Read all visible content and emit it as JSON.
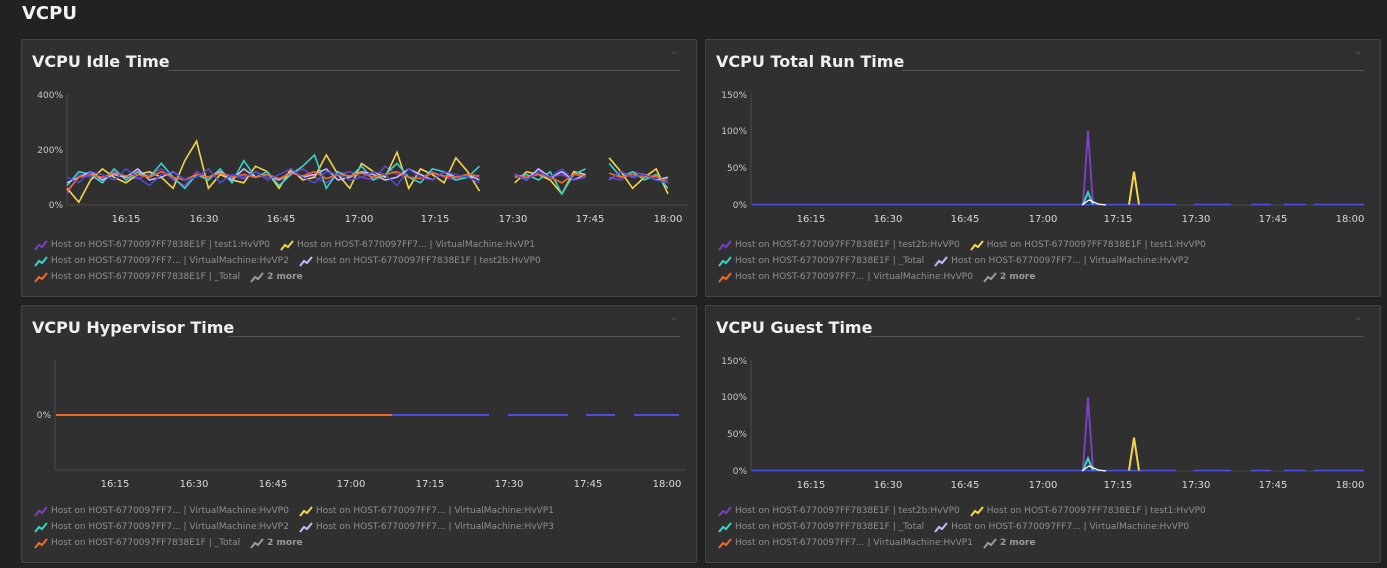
{
  "page": {
    "title": "VCPU"
  },
  "colors": {
    "purple": "#7b3fbf",
    "yellow": "#f5d64a",
    "cyan": "#36d3c9",
    "lavender": "#c9b6ff",
    "orange": "#ef6a2b",
    "blue": "#4b4fe0",
    "white": "#ffffff",
    "gray": "#9a9a9d"
  },
  "panels": [
    {
      "title": "VCPU Idle Time",
      "legend": [
        {
          "label": "Host on HOST-6770097FF7838E1F | test1:HvVP0",
          "color": "#7b3fbf"
        },
        {
          "label": "Host on HOST-6770097FF7... | VirtualMachine:HvVP1",
          "color": "#f5d64a"
        },
        {
          "label": "Host on HOST-6770097FF7... | VirtualMachine:HvVP2",
          "color": "#36d3c9"
        },
        {
          "label": "Host on HOST-6770097FF7838E1F | test2b:HvVP0",
          "color": "#c9b6ff"
        },
        {
          "label": "Host on HOST-6770097FF7838E1F | _Total",
          "color": "#ef6a2b"
        }
      ],
      "more": "2 more"
    },
    {
      "title": "VCPU Total Run Time",
      "legend": [
        {
          "label": "Host on HOST-6770097FF7838E1F | test2b:HvVP0",
          "color": "#7b3fbf"
        },
        {
          "label": "Host on HOST-6770097FF7838E1F | test1:HvVP0",
          "color": "#f5d64a"
        },
        {
          "label": "Host on HOST-6770097FF7838E1F | _Total",
          "color": "#36d3c9"
        },
        {
          "label": "Host on HOST-6770097FF7... | VirtualMachine:HvVP2",
          "color": "#c9b6ff"
        },
        {
          "label": "Host on HOST-6770097FF7... | VirtualMachine:HvVP0",
          "color": "#ef6a2b"
        }
      ],
      "more": "2 more"
    },
    {
      "title": "VCPU Hypervisor Time",
      "legend": [
        {
          "label": "Host on HOST-6770097FF7... | VirtualMachine:HvVP0",
          "color": "#7b3fbf"
        },
        {
          "label": "Host on HOST-6770097FF7... | VirtualMachine:HvVP1",
          "color": "#f5d64a"
        },
        {
          "label": "Host on HOST-6770097FF7... | VirtualMachine:HvVP2",
          "color": "#36d3c9"
        },
        {
          "label": "Host on HOST-6770097FF7... | VirtualMachine:HvVP3",
          "color": "#c9b6ff"
        },
        {
          "label": "Host on HOST-6770097FF7838E1F | _Total",
          "color": "#ef6a2b"
        }
      ],
      "more": "2 more"
    },
    {
      "title": "VCPU Guest Time",
      "legend": [
        {
          "label": "Host on HOST-6770097FF7838E1F | test2b:HvVP0",
          "color": "#7b3fbf"
        },
        {
          "label": "Host on HOST-6770097FF7838E1F | test1:HvVP0",
          "color": "#f5d64a"
        },
        {
          "label": "Host on HOST-6770097FF7838E1F | _Total",
          "color": "#36d3c9"
        },
        {
          "label": "Host on HOST-6770097FF7... | VirtualMachine:HvVP0",
          "color": "#c9b6ff"
        },
        {
          "label": "Host on HOST-6770097FF7... | VirtualMachine:HvVP1",
          "color": "#ef6a2b"
        }
      ],
      "more": "2 more"
    }
  ],
  "chart_data": [
    {
      "type": "line",
      "title": "VCPU Idle Time",
      "yticks": [
        "0%",
        "200%",
        "400%"
      ],
      "ylim": [
        0,
        400
      ],
      "xticks": [
        "16:15",
        "16:30",
        "16:45",
        "17:00",
        "17:15",
        "17:30",
        "17:45",
        "18:00"
      ],
      "series_note": "highly variable series oscillating roughly between 0% and 230%",
      "series": [
        {
          "name": "Host on HOST-6770097FF7838E1F | test1:HvVP0",
          "values": [
            40,
            110,
            100,
            90,
            120,
            100,
            95,
            110,
            130,
            90,
            70,
            120,
            100,
            115,
            105,
            95,
            120,
            100,
            90,
            110,
            130,
            100,
            80,
            110,
            120,
            100,
            90,
            140,
            110,
            100,
            95,
            120,
            100,
            90,
            110,
            100,
            120,
            90,
            110,
            100,
            120,
            100,
            110,
            90,
            100,
            80,
            100,
            90,
            120,
            110,
            100,
            90
          ]
        },
        {
          "name": "Host on HOST-6770097FF7... | VirtualMachine:HvVP1",
          "values": [
            60,
            10,
            90,
            130,
            100,
            80,
            110,
            120,
            100,
            60,
            160,
            230,
            60,
            110,
            90,
            80,
            140,
            120,
            60,
            130,
            90,
            100,
            180,
            110,
            60,
            150,
            120,
            100,
            190,
            60,
            130,
            110,
            80,
            170,
            120,
            50,
            140,
            100,
            80,
            120,
            110,
            90,
            40,
            120,
            110,
            80,
            170,
            120,
            60,
            100,
            130,
            40
          ]
        },
        {
          "name": "Host on HOST-6770097FF7... | VirtualMachine:HvVP2",
          "values": [
            70,
            120,
            110,
            80,
            130,
            90,
            120,
            100,
            150,
            100,
            60,
            110,
            90,
            130,
            80,
            160,
            100,
            120,
            70,
            110,
            140,
            180,
            60,
            120,
            100,
            140,
            90,
            110,
            150,
            100,
            80,
            130,
            120,
            90,
            100,
            140,
            60,
            130,
            100,
            110,
            90,
            120,
            40,
            110,
            130,
            70,
            150,
            100,
            120,
            90,
            110,
            60
          ]
        },
        {
          "name": "Host on HOST-6770097FF7838E1F | test2b:HvVP0",
          "values": [
            80,
            100,
            120,
            90,
            110,
            100,
            130,
            90,
            100,
            120,
            90,
            110,
            100,
            120,
            90,
            130,
            100,
            110,
            90,
            120,
            100,
            110,
            130,
            90,
            100,
            120,
            110,
            90,
            100,
            130,
            110,
            90,
            120,
            100,
            110,
            90,
            120,
            100,
            110,
            90,
            130,
            100,
            120,
            90,
            110,
            100,
            90,
            120,
            100,
            110,
            90,
            100
          ]
        },
        {
          "name": "Host on HOST-6770097FF7838E1F | _Total",
          "values": [
            50,
            100,
            110,
            100,
            115,
            105,
            110,
            100,
            120,
            100,
            90,
            110,
            100,
            115,
            100,
            110,
            100,
            110,
            95,
            115,
            105,
            120,
            95,
            110,
            105,
            115,
            100,
            110,
            120,
            100,
            95,
            115,
            105,
            100,
            110,
            105,
            95,
            110,
            105,
            100,
            110,
            100,
            80,
            110,
            105,
            95,
            115,
            100,
            110,
            100,
            105,
            80
          ]
        }
      ]
    },
    {
      "type": "line",
      "title": "VCPU Total Run Time",
      "yticks": [
        "0%",
        "50%",
        "100%",
        "150%"
      ],
      "ylim": [
        0,
        150
      ],
      "xticks": [
        "16:15",
        "16:30",
        "16:45",
        "17:00",
        "17:15",
        "17:30",
        "17:45",
        "18:00"
      ],
      "spikes": [
        {
          "series": "Host on HOST-6770097FF7838E1F | test2b:HvVP0",
          "at": "17:09",
          "value": 100
        },
        {
          "series": "Host on HOST-6770097FF7838E1F | test1:HvVP0",
          "at": "17:18",
          "value": 45
        },
        {
          "series": "Host on HOST-6770097FF7838E1F | _Total",
          "at": "17:09",
          "value": 17
        }
      ]
    },
    {
      "type": "line",
      "title": "VCPU Hypervisor Time",
      "yticks": [
        "0%"
      ],
      "xticks": [
        "16:15",
        "16:30",
        "16:45",
        "17:00",
        "17:15",
        "17:30",
        "17:45",
        "18:00"
      ],
      "series_note": "all series flat at 0%"
    },
    {
      "type": "line",
      "title": "VCPU Guest Time",
      "yticks": [
        "0%",
        "50%",
        "100%",
        "150%"
      ],
      "ylim": [
        0,
        150
      ],
      "xticks": [
        "16:15",
        "16:30",
        "16:45",
        "17:00",
        "17:15",
        "17:30",
        "17:45",
        "18:00"
      ],
      "spikes": [
        {
          "series": "Host on HOST-6770097FF7838E1F | test2b:HvVP0",
          "at": "17:09",
          "value": 100
        },
        {
          "series": "Host on HOST-6770097FF7838E1F | test1:HvVP0",
          "at": "17:18",
          "value": 45
        },
        {
          "series": "Host on HOST-6770097FF7838E1F | _Total",
          "at": "17:09",
          "value": 17
        }
      ]
    }
  ]
}
